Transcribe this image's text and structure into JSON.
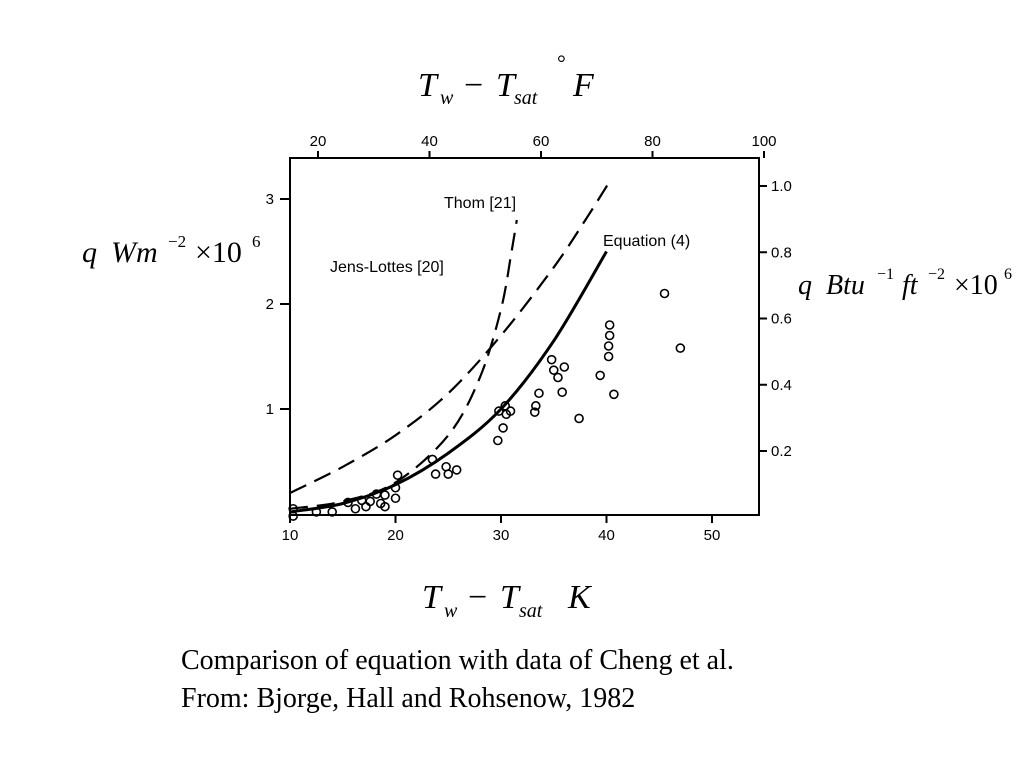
{
  "slide": {
    "caption_line1": "Comparison of equation with data of Cheng et al.",
    "caption_line2": "From: Bjorge, Hall and Rohsenow, 1982"
  },
  "labels": {
    "top_axis": {
      "T": "T",
      "w": "w",
      "minus": "−",
      "T2": "T",
      "sat": "sat",
      "deg": "°",
      "unit": "F"
    },
    "bottom_axis": {
      "T": "T",
      "w": "w",
      "minus": "−",
      "T2": "T",
      "sat": "sat",
      "unit": "K"
    },
    "left_axis": {
      "q": "q",
      "unit": "Wm",
      "exp": "−2",
      "mult": "×10",
      "pow": "6"
    },
    "right_axis": {
      "q": "q",
      "unit1": "Btu",
      "exp1": "−1",
      "unit2": "ft",
      "exp2": "−2",
      "mult": "×10",
      "pow": "6"
    }
  },
  "chart_data": {
    "type": "scatter",
    "x_bottom": {
      "ticks": [
        10,
        20,
        30,
        40,
        50
      ],
      "lim": [
        10,
        54
      ]
    },
    "x_top": {
      "ticks": [
        20,
        40,
        60,
        80,
        100
      ]
    },
    "y_left": {
      "ticks": [
        1,
        2,
        3
      ],
      "lim": [
        -0.05,
        3.4
      ]
    },
    "y_right": {
      "ticks": [
        0.2,
        0.4,
        0.6,
        0.8,
        1.0
      ]
    },
    "series": [
      {
        "name": "Thom [21]",
        "style": "dashed",
        "x": [
          10,
          15,
          20,
          25,
          28,
          30,
          31,
          31.5
        ],
        "y": [
          0.05,
          0.12,
          0.3,
          0.75,
          1.3,
          1.95,
          2.5,
          2.8
        ]
      },
      {
        "name": "Jens-Lottes [20]",
        "style": "dashed",
        "x": [
          10,
          15,
          20,
          25,
          30,
          35,
          38,
          40.5
        ],
        "y": [
          0.2,
          0.45,
          0.75,
          1.15,
          1.7,
          2.35,
          2.8,
          3.2
        ]
      },
      {
        "name": "Equation (4)",
        "style": "solid",
        "x": [
          10,
          15,
          20,
          25,
          30,
          35,
          40
        ],
        "y": [
          0.02,
          0.1,
          0.28,
          0.58,
          1.0,
          1.65,
          2.5
        ]
      }
    ],
    "points": {
      "x": [
        10.3,
        10.3,
        12.5,
        14,
        15.5,
        16.2,
        16.8,
        17.2,
        17.6,
        18.2,
        18.6,
        19,
        19,
        20,
        20,
        20.2,
        23.5,
        23.8,
        24.8,
        25,
        25.8,
        29.7,
        29.8,
        30.2,
        30.4,
        30.5,
        30.9,
        33.2,
        33.3,
        33.6,
        34.8,
        35,
        35.4,
        35.8,
        36,
        37.4,
        39.4,
        40.2,
        40.2,
        40.3,
        40.3,
        40.7,
        45.5,
        47
      ],
      "y": [
        0.05,
        -0.02,
        0.02,
        0.02,
        0.11,
        0.05,
        0.13,
        0.07,
        0.12,
        0.19,
        0.1,
        0.18,
        0.07,
        0.15,
        0.25,
        0.37,
        0.52,
        0.38,
        0.45,
        0.38,
        0.42,
        0.7,
        0.98,
        0.82,
        1.03,
        0.95,
        0.98,
        0.97,
        1.03,
        1.15,
        1.47,
        1.37,
        1.3,
        1.16,
        1.4,
        0.91,
        1.32,
        1.5,
        1.6,
        1.7,
        1.8,
        1.14,
        2.1,
        1.58
      ]
    }
  }
}
